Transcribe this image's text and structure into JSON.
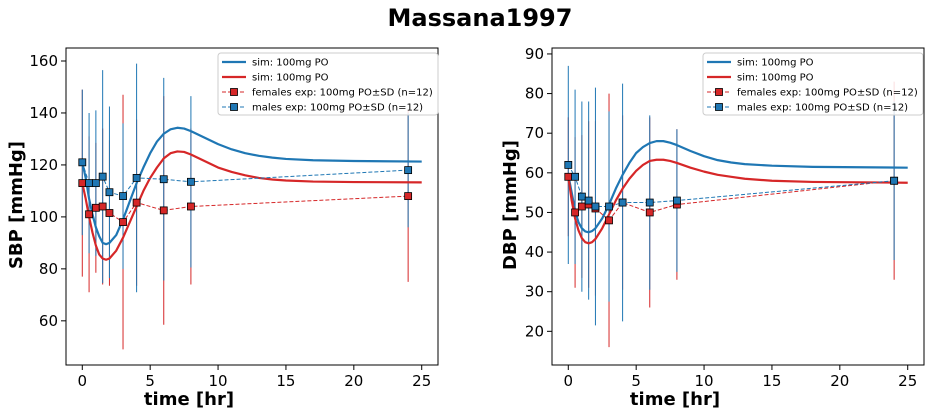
{
  "figure_title": "Massana1997",
  "colors": {
    "male": "#1f77b4",
    "female": "#d62728"
  },
  "chart_data": [
    {
      "type": "line",
      "xlabel": "time [hr]",
      "ylabel": "SBP [mmHg]",
      "xlim": [
        -1.2,
        26.2
      ],
      "ylim": [
        43,
        165
      ],
      "xticks": [
        0,
        5,
        10,
        15,
        20,
        25
      ],
      "yticks": [
        60,
        80,
        100,
        120,
        140,
        160
      ],
      "grid": false,
      "legend_placement": "top-right",
      "legend": [
        "sim: 100mg PO",
        "sim: 100mg PO",
        "females exp: 100mg PO±SD (n=12)",
        "males exp: 100mg PO±SD (n=12)"
      ],
      "sim_series": [
        {
          "name": "sim: 100mg PO",
          "color": "#1f77b4",
          "points": [
            [
              0,
              121
            ],
            [
              0.25,
              115
            ],
            [
              0.5,
              107
            ],
            [
              0.75,
              101
            ],
            [
              1,
              96
            ],
            [
              1.25,
              92.5
            ],
            [
              1.5,
              90
            ],
            [
              1.75,
              89.5
            ],
            [
              2,
              90
            ],
            [
              2.5,
              93
            ],
            [
              3,
              99
            ],
            [
              3.5,
              106
            ],
            [
              4,
              113
            ],
            [
              4.5,
              119
            ],
            [
              5,
              124.5
            ],
            [
              5.5,
              129
            ],
            [
              6,
              132
            ],
            [
              6.5,
              133.7
            ],
            [
              7,
              134.3
            ],
            [
              7.5,
              134
            ],
            [
              8,
              133
            ],
            [
              9,
              130.5
            ],
            [
              10,
              128
            ],
            [
              11,
              126
            ],
            [
              12,
              124.5
            ],
            [
              13,
              123.5
            ],
            [
              14,
              122.8
            ],
            [
              15,
              122.3
            ],
            [
              17,
              121.8
            ],
            [
              20,
              121.5
            ],
            [
              25,
              121.3
            ]
          ]
        },
        {
          "name": "sim: 100mg PO",
          "color": "#d62728",
          "points": [
            [
              0,
              113
            ],
            [
              0.25,
              107
            ],
            [
              0.5,
              100
            ],
            [
              0.75,
              94
            ],
            [
              1,
              89
            ],
            [
              1.25,
              85.5
            ],
            [
              1.5,
              84
            ],
            [
              1.75,
              83.5
            ],
            [
              2,
              84
            ],
            [
              2.5,
              87
            ],
            [
              3,
              92
            ],
            [
              3.5,
              98
            ],
            [
              4,
              104
            ],
            [
              4.5,
              110
            ],
            [
              5,
              115
            ],
            [
              5.5,
              119
            ],
            [
              6,
              122.5
            ],
            [
              6.5,
              124.5
            ],
            [
              7,
              125.2
            ],
            [
              7.5,
              125
            ],
            [
              8,
              124
            ],
            [
              9,
              121.5
            ],
            [
              10,
              119
            ],
            [
              11,
              117.3
            ],
            [
              12,
              116
            ],
            [
              13,
              115
            ],
            [
              14,
              114.4
            ],
            [
              15,
              114
            ],
            [
              17,
              113.6
            ],
            [
              20,
              113.4
            ],
            [
              25,
              113.3
            ]
          ]
        }
      ],
      "exp_series": [
        {
          "name": "females exp: 100mg PO±SD (n=12)",
          "color": "#d62728",
          "x": [
            0,
            0.5,
            1,
            1.5,
            2,
            3,
            4,
            6,
            8,
            24
          ],
          "y": [
            113,
            101,
            103.5,
            104,
            101.5,
            98,
            105.5,
            102.5,
            104,
            108
          ],
          "sd": [
            36,
            30,
            25,
            30,
            28,
            49,
            32,
            44,
            30,
            33
          ]
        },
        {
          "name": "males exp: 100mg PO±SD (n=12)",
          "color": "#1f77b4",
          "x": [
            0,
            0.5,
            1,
            1.5,
            2.0,
            3,
            4,
            6,
            8,
            24
          ],
          "y": [
            121,
            113,
            113,
            115.5,
            109.5,
            108,
            115,
            114.5,
            113.5,
            118
          ],
          "sd": [
            28,
            27,
            28,
            41,
            33,
            28,
            44,
            39,
            33,
            22
          ]
        }
      ]
    },
    {
      "type": "line",
      "xlabel": "time [hr]",
      "ylabel": "DBP [mmHg]",
      "xlim": [
        -1.2,
        26.2
      ],
      "ylim": [
        11.5,
        91.5
      ],
      "xticks": [
        0,
        5,
        10,
        15,
        20,
        25
      ],
      "yticks": [
        20,
        30,
        40,
        50,
        60,
        70,
        80,
        90
      ],
      "grid": false,
      "legend_placement": "top-right",
      "legend": [
        "sim: 100mg PO",
        "sim: 100mg PO",
        "females exp: 100mg PO±SD (n=12)",
        "males exp: 100mg PO±SD (n=12)"
      ],
      "sim_series": [
        {
          "name": "sim: 100mg PO",
          "color": "#1f77b4",
          "points": [
            [
              0,
              59.5
            ],
            [
              0.25,
              55
            ],
            [
              0.5,
              50.5
            ],
            [
              0.75,
              47.5
            ],
            [
              1,
              46
            ],
            [
              1.25,
              45.2
            ],
            [
              1.5,
              45
            ],
            [
              1.75,
              45.3
            ],
            [
              2,
              46
            ],
            [
              2.5,
              48.5
            ],
            [
              3,
              52
            ],
            [
              3.5,
              56
            ],
            [
              4,
              59.5
            ],
            [
              4.5,
              62.5
            ],
            [
              5,
              65
            ],
            [
              5.5,
              66.5
            ],
            [
              6,
              67.5
            ],
            [
              6.5,
              68
            ],
            [
              7,
              68
            ],
            [
              7.5,
              67.6
            ],
            [
              8,
              67
            ],
            [
              9,
              65.5
            ],
            [
              10,
              64.2
            ],
            [
              11,
              63.2
            ],
            [
              12,
              62.6
            ],
            [
              13,
              62.2
            ],
            [
              15,
              61.8
            ],
            [
              18,
              61.5
            ],
            [
              25,
              61.3
            ]
          ]
        },
        {
          "name": "sim: 100mg PO",
          "color": "#d62728",
          "points": [
            [
              0,
              59
            ],
            [
              0.25,
              53
            ],
            [
              0.5,
              48.5
            ],
            [
              0.75,
              45.5
            ],
            [
              1,
              43.5
            ],
            [
              1.25,
              42.5
            ],
            [
              1.5,
              42.2
            ],
            [
              1.75,
              42.5
            ],
            [
              2,
              43.3
            ],
            [
              2.5,
              46
            ],
            [
              3,
              49.5
            ],
            [
              3.5,
              53
            ],
            [
              4,
              56
            ],
            [
              4.5,
              58.5
            ],
            [
              5,
              60.5
            ],
            [
              5.5,
              62
            ],
            [
              6,
              63
            ],
            [
              6.5,
              63.3
            ],
            [
              7,
              63.3
            ],
            [
              7.5,
              63
            ],
            [
              8,
              62.5
            ],
            [
              9,
              61.3
            ],
            [
              10,
              60.3
            ],
            [
              11,
              59.5
            ],
            [
              12,
              59
            ],
            [
              13,
              58.5
            ],
            [
              15,
              58
            ],
            [
              18,
              57.7
            ],
            [
              25,
              57.5
            ]
          ]
        }
      ],
      "exp_series": [
        {
          "name": "females exp: 100mg PO±SD (n=12)",
          "color": "#d62728",
          "x": [
            0,
            0.5,
            1,
            1.5,
            2,
            3,
            4,
            6,
            8,
            24
          ],
          "y": [
            59,
            50,
            51.5,
            52,
            51,
            48,
            52.5,
            50,
            52,
            58
          ],
          "sd": [
            15,
            19,
            18,
            21,
            22,
            32,
            22,
            24,
            19,
            25
          ]
        },
        {
          "name": "males exp: 100mg PO±SD (n=12)",
          "color": "#1f77b4",
          "x": [
            0,
            0.5,
            1,
            1.5,
            2.0,
            3,
            4,
            6,
            8,
            24
          ],
          "y": [
            62,
            59,
            54,
            53,
            51.5,
            51.5,
            52.5,
            52.5,
            53,
            58
          ],
          "sd": [
            25,
            22,
            24,
            25,
            30,
            24,
            30,
            22,
            18,
            20
          ]
        }
      ]
    }
  ]
}
